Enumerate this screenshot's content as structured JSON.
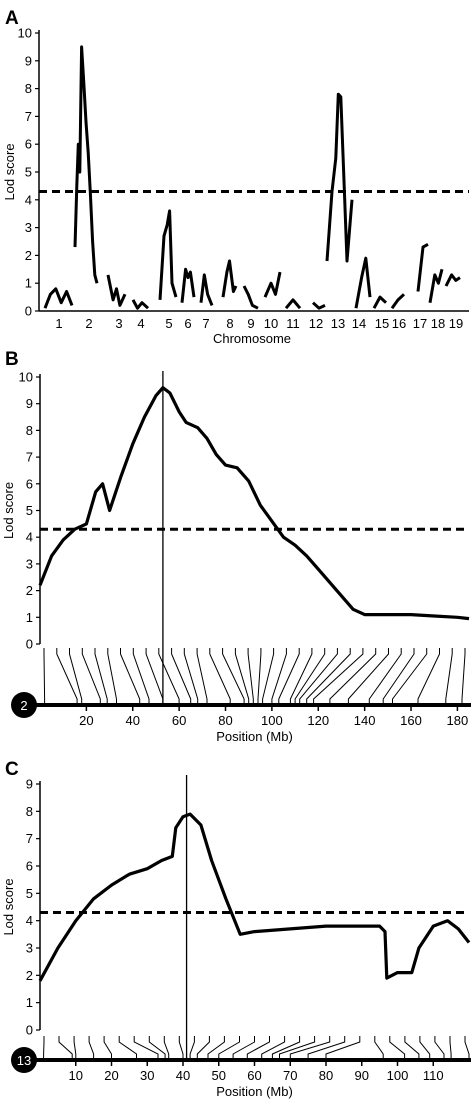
{
  "chart_data": [
    {
      "type": "line",
      "panel_label": "A",
      "title": "",
      "xlabel": "Chromosome",
      "ylabel": "Lod score",
      "ylim": [
        0,
        10
      ],
      "yticks": [
        0,
        1,
        2,
        3,
        4,
        5,
        6,
        7,
        8,
        9,
        10
      ],
      "categories": [
        "1",
        "2",
        "3",
        "4",
        "5",
        "6",
        "7",
        "8",
        "9",
        "10",
        "11",
        "12",
        "13",
        "14",
        "15",
        "16",
        "17",
        "18",
        "19"
      ],
      "threshold": 4.3,
      "grid": false,
      "series_by_chromosome": [
        {
          "chromosome": "1",
          "x": [
            0,
            0.2,
            0.4,
            0.6,
            0.8,
            1
          ],
          "y": [
            0.1,
            0.6,
            0.8,
            0.3,
            0.7,
            0.2
          ]
        },
        {
          "chromosome": "2",
          "x": [
            0,
            0.08,
            0.15,
            0.22,
            0.3,
            0.4,
            0.5,
            0.6,
            0.7,
            0.8,
            0.9,
            1
          ],
          "y": [
            2.3,
            4.5,
            6.0,
            5.0,
            9.5,
            8.2,
            6.8,
            5.7,
            4.2,
            2.5,
            1.3,
            1.0
          ]
        },
        {
          "chromosome": "3",
          "x": [
            0,
            0.3,
            0.5,
            0.7,
            1
          ],
          "y": [
            1.3,
            0.4,
            0.8,
            0.2,
            0.6
          ]
        },
        {
          "chromosome": "4",
          "x": [
            0,
            0.3,
            0.6,
            1
          ],
          "y": [
            0.4,
            0.1,
            0.3,
            0.1
          ]
        },
        {
          "chromosome": "5",
          "x": [
            0,
            0.25,
            0.45,
            0.6,
            0.75,
            1
          ],
          "y": [
            0.4,
            2.7,
            3.1,
            3.6,
            1.0,
            0.5
          ]
        },
        {
          "chromosome": "6",
          "x": [
            0,
            0.3,
            0.5,
            0.7,
            1
          ],
          "y": [
            0.3,
            1.5,
            1.2,
            1.4,
            0.5
          ]
        },
        {
          "chromosome": "7",
          "x": [
            0,
            0.3,
            0.6,
            1
          ],
          "y": [
            0.3,
            1.3,
            0.6,
            0.2
          ]
        },
        {
          "chromosome": "8",
          "x": [
            0,
            0.3,
            0.5,
            0.8,
            1
          ],
          "y": [
            0.5,
            1.4,
            1.8,
            0.7,
            0.9
          ]
        },
        {
          "chromosome": "9",
          "x": [
            0,
            0.3,
            0.6,
            1
          ],
          "y": [
            0.9,
            0.6,
            0.2,
            0.1
          ]
        },
        {
          "chromosome": "10",
          "x": [
            0,
            0.4,
            0.7,
            1
          ],
          "y": [
            0.5,
            1.0,
            0.6,
            1.4
          ]
        },
        {
          "chromosome": "11",
          "x": [
            0,
            0.5,
            1
          ],
          "y": [
            0.1,
            0.4,
            0.1
          ]
        },
        {
          "chromosome": "12",
          "x": [
            0,
            0.5,
            1
          ],
          "y": [
            0.3,
            0.1,
            0.2
          ]
        },
        {
          "chromosome": "13",
          "x": [
            0,
            0.2,
            0.35,
            0.45,
            0.55,
            0.7,
            0.8,
            1
          ],
          "y": [
            1.8,
            4.3,
            5.5,
            7.8,
            7.7,
            4.2,
            1.8,
            4.0
          ]
        },
        {
          "chromosome": "14",
          "x": [
            0,
            0.4,
            0.7,
            1
          ],
          "y": [
            0.1,
            1.2,
            1.9,
            0.5
          ]
        },
        {
          "chromosome": "15",
          "x": [
            0,
            0.5,
            1
          ],
          "y": [
            0.1,
            0.5,
            0.3
          ]
        },
        {
          "chromosome": "16",
          "x": [
            0,
            0.5,
            1
          ],
          "y": [
            0.1,
            0.4,
            0.6
          ]
        },
        {
          "chromosome": "17",
          "x": [
            0,
            0.5,
            1
          ],
          "y": [
            0.7,
            2.3,
            2.4
          ]
        },
        {
          "chromosome": "18",
          "x": [
            0,
            0.4,
            0.7,
            1
          ],
          "y": [
            0.3,
            1.3,
            1.0,
            1.5
          ]
        },
        {
          "chromosome": "19",
          "x": [
            0,
            0.4,
            0.7,
            1
          ],
          "y": [
            0.9,
            1.3,
            1.1,
            1.2
          ]
        }
      ]
    },
    {
      "type": "line",
      "panel_label": "B",
      "title": "",
      "xlabel": "Position (Mb)",
      "ylabel": "Lod score",
      "chromosome": "2",
      "xlim": [
        0,
        185
      ],
      "ylim": [
        0,
        10
      ],
      "xticks": [
        20,
        40,
        60,
        80,
        100,
        120,
        140,
        160,
        180
      ],
      "yticks": [
        0,
        1,
        2,
        3,
        4,
        5,
        6,
        7,
        8,
        9,
        10
      ],
      "threshold": 4.3,
      "peak_position": 53,
      "grid": false,
      "x": [
        0,
        5,
        10,
        15,
        20,
        24,
        27,
        30,
        35,
        40,
        45,
        50,
        53,
        56,
        60,
        63,
        68,
        72,
        76,
        80,
        85,
        90,
        95,
        100,
        105,
        110,
        115,
        120,
        125,
        130,
        135,
        140,
        145,
        150,
        155,
        160,
        170,
        180,
        185
      ],
      "y": [
        2.2,
        3.3,
        3.9,
        4.3,
        4.5,
        5.7,
        6.0,
        5.0,
        6.3,
        7.5,
        8.5,
        9.3,
        9.6,
        9.4,
        8.7,
        8.3,
        8.1,
        7.7,
        7.1,
        6.7,
        6.6,
        6.1,
        5.2,
        4.6,
        4.0,
        3.7,
        3.3,
        2.8,
        2.3,
        1.8,
        1.3,
        1.1,
        1.1,
        1.1,
        1.1,
        1.1,
        1.05,
        1.0,
        0.95
      ],
      "marker_positions": [
        2,
        16,
        18,
        26,
        29,
        33,
        43,
        47,
        53,
        60,
        65,
        68,
        72,
        82,
        88,
        90,
        92,
        94,
        96,
        100,
        103,
        108,
        110,
        112,
        115,
        118,
        125,
        133,
        142,
        148,
        152,
        163,
        175,
        182
      ]
    },
    {
      "type": "line",
      "panel_label": "C",
      "title": "",
      "xlabel": "Position (Mb)",
      "ylabel": "Lod score",
      "chromosome": "13",
      "xlim": [
        0,
        120
      ],
      "ylim": [
        0,
        9
      ],
      "xticks": [
        10,
        20,
        30,
        40,
        50,
        60,
        70,
        80,
        90,
        100,
        110
      ],
      "yticks": [
        0,
        1,
        2,
        3,
        4,
        5,
        6,
        7,
        8,
        9
      ],
      "threshold": 4.3,
      "peak_position": 41,
      "grid": false,
      "x": [
        0,
        5,
        10,
        15,
        20,
        25,
        30,
        34,
        37,
        38,
        40,
        42,
        45,
        48,
        52,
        56,
        60,
        70,
        80,
        95,
        96.5,
        97,
        100,
        104,
        106,
        110,
        114,
        117,
        120
      ],
      "y": [
        1.8,
        3.0,
        4.0,
        4.8,
        5.3,
        5.7,
        5.9,
        6.2,
        6.35,
        7.4,
        7.8,
        7.9,
        7.5,
        6.2,
        4.8,
        3.5,
        3.6,
        3.7,
        3.8,
        3.8,
        3.6,
        1.9,
        2.1,
        2.1,
        3.0,
        3.8,
        4.0,
        3.7,
        3.2
      ],
      "marker_positions": [
        1,
        9,
        10,
        15,
        20,
        27,
        33,
        35,
        36,
        40,
        42,
        44,
        47,
        50,
        54,
        58,
        62,
        65,
        67,
        70,
        75,
        80,
        96,
        102,
        106,
        109,
        113,
        115,
        120
      ]
    }
  ]
}
